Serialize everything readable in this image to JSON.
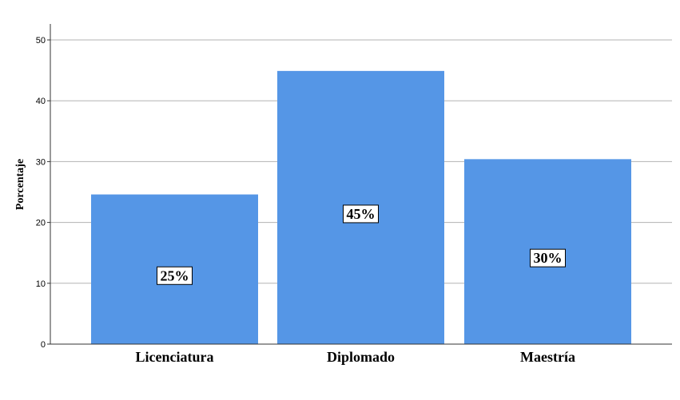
{
  "chart_data": {
    "type": "bar",
    "categories": [
      "Licenciatura",
      "Diplomado",
      "Maestría"
    ],
    "values": [
      24.6,
      44.9,
      30.4
    ],
    "data_labels": [
      "25%",
      "45%",
      "30%"
    ],
    "title": "",
    "xlabel": "",
    "ylabel": "Porcentaje",
    "ylim": [
      0,
      50
    ],
    "yticks": [
      0,
      10,
      20,
      30,
      40,
      50
    ],
    "grid": true,
    "bar_color": "#5596E6",
    "grid_color": "#b3b3b3"
  }
}
